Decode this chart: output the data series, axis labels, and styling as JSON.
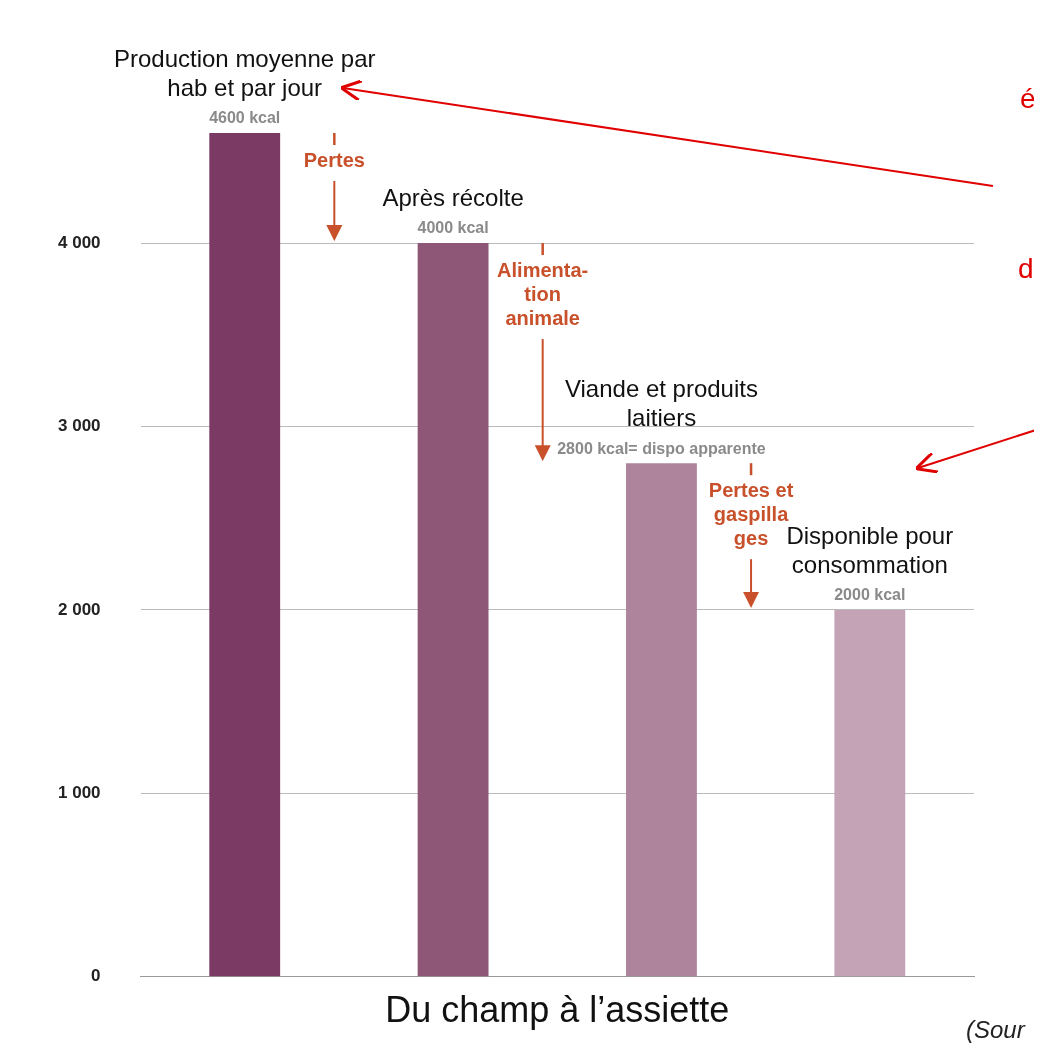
{
  "chart_data": {
    "type": "bar",
    "xlabel": "Du champ à l’assiette",
    "categories": [
      "Production moyenne par hab et par jour",
      "Après récolte",
      "Viande et produits laitiers",
      "Disponible pour consommation"
    ],
    "values": [
      4600,
      4000,
      2800,
      2000
    ],
    "value_labels": [
      "4600 kcal",
      "4000 kcal",
      "2800 kcal= dispo apparente",
      "2000 kcal"
    ],
    "colors": [
      "#7b3a64",
      "#8e5677",
      "#ae849c",
      "#c3a3b5"
    ],
    "ylim": [
      0,
      4600
    ],
    "yticks": [
      0,
      {
        "value": 1000,
        "label": "1 000"
      },
      {
        "value": 2000,
        "label": "2 000"
      },
      {
        "value": 3000,
        "label": "3 000"
      },
      {
        "value": 4000,
        "label": "4 000"
      }
    ],
    "grid": "y",
    "legend": false,
    "tick_labels": "y",
    "annotations": [
      "Pertes",
      "Alimenta-tion animale",
      "Pertes et gaspilla ges",
      "é",
      "d",
      "(Sour"
    ]
  }
}
